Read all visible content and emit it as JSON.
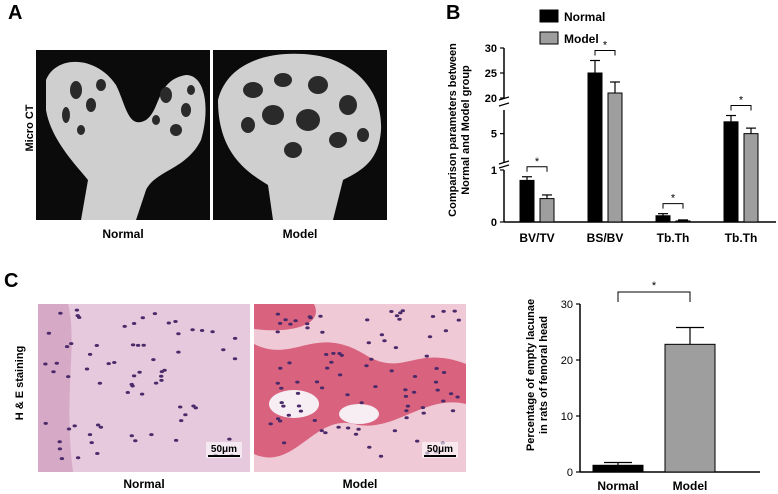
{
  "panels": {
    "a": "A",
    "b": "B",
    "c": "C"
  },
  "panel_a": {
    "side_label": "Micro CT",
    "captions": [
      "Normal",
      "Model"
    ]
  },
  "panel_c": {
    "side_label": "H & E staining",
    "captions": [
      "Normal",
      "Model"
    ],
    "scale_bars": [
      "50μm",
      "50μm"
    ]
  },
  "colors": {
    "normal": "#000000",
    "model": "#9e9e9e",
    "he_light": "#e6c9dd",
    "he_dark": "#d9637f",
    "nuclei": "#4b2a6a"
  },
  "chart_data": [
    {
      "type": "bar",
      "ylabel": "Comparison parameters between Normal and Model group",
      "legend": "top-center",
      "categories": [
        "BV/TV",
        "BS/BV",
        "Tb.Th",
        "Tb.Th"
      ],
      "series": [
        {
          "name": "Normal",
          "values": [
            0.8,
            25,
            0.12,
            6.5
          ],
          "errors": [
            0.07,
            2.5,
            0.04,
            0.8
          ]
        },
        {
          "name": "Model",
          "values": [
            0.45,
            21,
            0.02,
            5.0
          ],
          "errors": [
            0.07,
            2.2,
            0.02,
            0.7
          ]
        }
      ],
      "axis_breaks": [
        {
          "range": [
            0,
            1
          ],
          "ticks": [
            "0",
            "1"
          ]
        },
        {
          "range": [
            1.4,
            8
          ],
          "ticks": [
            "5"
          ]
        },
        {
          "range": [
            20,
            30
          ],
          "ticks": [
            "20",
            "25",
            "30"
          ]
        }
      ],
      "significance": [
        "*",
        "*",
        "*",
        "*"
      ]
    },
    {
      "type": "bar",
      "ylabel": "Percentage of empty lacunae in rats of femoral head",
      "categories": [
        "Normal",
        "Model"
      ],
      "values": [
        1.2,
        22.8
      ],
      "errors": [
        0.5,
        3.0
      ],
      "ylim": [
        0,
        30
      ],
      "yticks": [
        "0",
        "10",
        "20",
        "30"
      ],
      "significance": "*"
    }
  ]
}
